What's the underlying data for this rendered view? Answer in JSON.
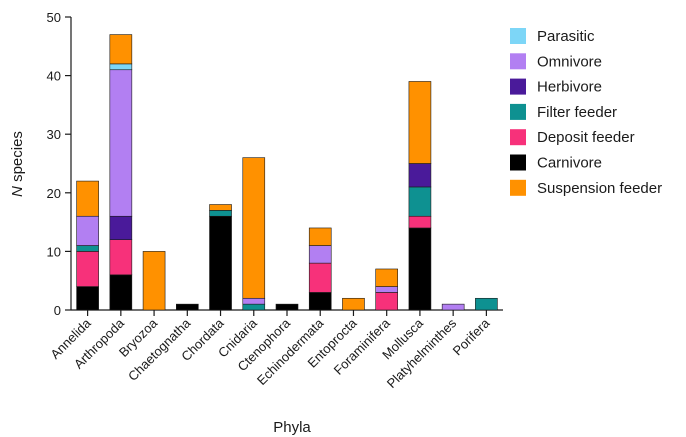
{
  "chart_data": {
    "type": "bar",
    "stacked": true,
    "xlabel": "Phyla",
    "ylabel_italic": "N",
    "ylabel_rest": " species",
    "ylim": [
      0,
      50
    ],
    "yticks": [
      0,
      10,
      20,
      30,
      40,
      50
    ],
    "grid": false,
    "legend_position": "top-right",
    "categories": [
      "Annelida",
      "Arthropoda",
      "Bryozoa",
      "Chaetognatha",
      "Chordata",
      "Cnidaria",
      "Ctenophora",
      "Echinodermata",
      "Entoprocta",
      "Foraminifera",
      "Mollusca",
      "Platyhelminthes",
      "Porifera"
    ],
    "series": [
      {
        "name": "Carnivore",
        "color": "#000000",
        "values": [
          4,
          6,
          0,
          1,
          16,
          0,
          1,
          3,
          0,
          0,
          14,
          0,
          0
        ]
      },
      {
        "name": "Deposit feeder",
        "color": "#f7317a",
        "values": [
          6,
          6,
          0,
          0,
          0,
          0,
          0,
          5,
          0,
          3,
          2,
          0,
          0
        ]
      },
      {
        "name": "Filter feeder",
        "color": "#0e9191",
        "values": [
          1,
          0,
          0,
          0,
          1,
          1,
          0,
          0,
          0,
          0,
          5,
          0,
          2
        ]
      },
      {
        "name": "Herbivore",
        "color": "#4a1a9a",
        "values": [
          0,
          4,
          0,
          0,
          0,
          0,
          0,
          0,
          0,
          0,
          4,
          0,
          0
        ]
      },
      {
        "name": "Omnivore",
        "color": "#b27ff2",
        "values": [
          5,
          25,
          0,
          0,
          0,
          1,
          0,
          3,
          0,
          1,
          0,
          1,
          0
        ]
      },
      {
        "name": "Parasitic",
        "color": "#7dd6f7",
        "values": [
          0,
          1,
          0,
          0,
          0,
          0,
          0,
          0,
          0,
          0,
          0,
          0,
          0
        ]
      },
      {
        "name": "Suspension feeder",
        "color": "#ff9100",
        "values": [
          6,
          5,
          10,
          0,
          1,
          24,
          0,
          3,
          2,
          3,
          14,
          0,
          0
        ]
      }
    ],
    "legend_order": [
      "Parasitic",
      "Omnivore",
      "Herbivore",
      "Filter feeder",
      "Deposit feeder",
      "Carnivore",
      "Suspension feeder"
    ]
  }
}
